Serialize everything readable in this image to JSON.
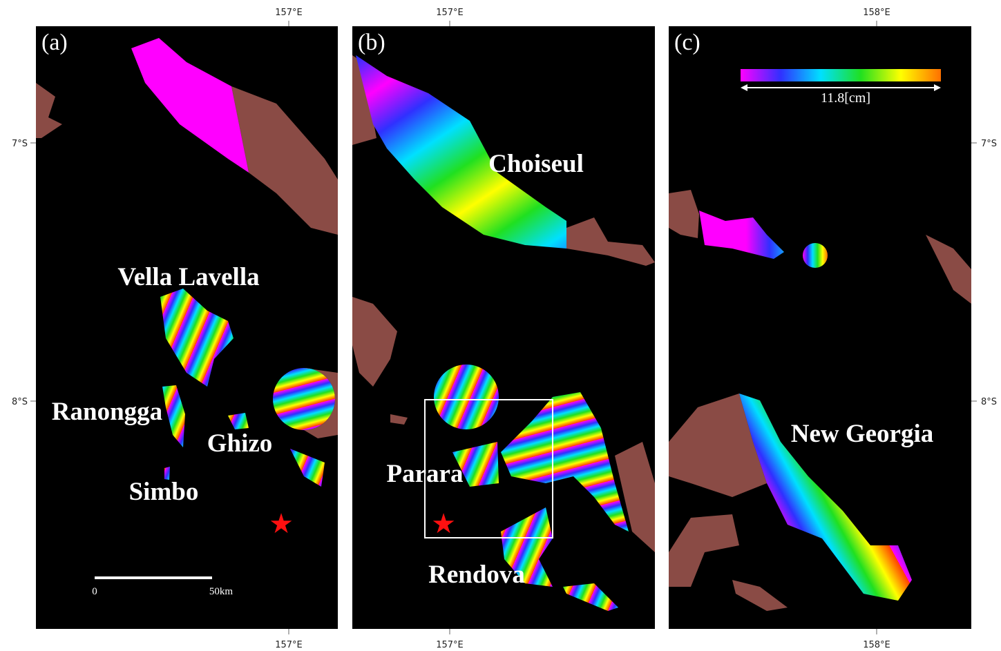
{
  "panels": [
    {
      "label": "(a)",
      "top_lon": "157°E",
      "bottom_lon": "157°E",
      "place_names": [
        "Vella Lavella",
        "Ranongga",
        "Ghizo",
        "Simbo"
      ],
      "scale_bar": {
        "start": "0",
        "end": "50km"
      }
    },
    {
      "label": "(b)",
      "top_lon": "157°E",
      "bottom_lon": "157°E",
      "place_names": [
        "Choiseul",
        "Parara",
        "Rendova"
      ]
    },
    {
      "label": "(c)",
      "top_lon": "158°E",
      "bottom_lon": "158°E",
      "place_names": [
        "New Georgia"
      ],
      "color_scale": "11.8[cm]"
    }
  ],
  "lat_labels": {
    "left": [
      "7°S",
      "8°S"
    ],
    "right": [
      "7°S",
      "8°S"
    ]
  }
}
